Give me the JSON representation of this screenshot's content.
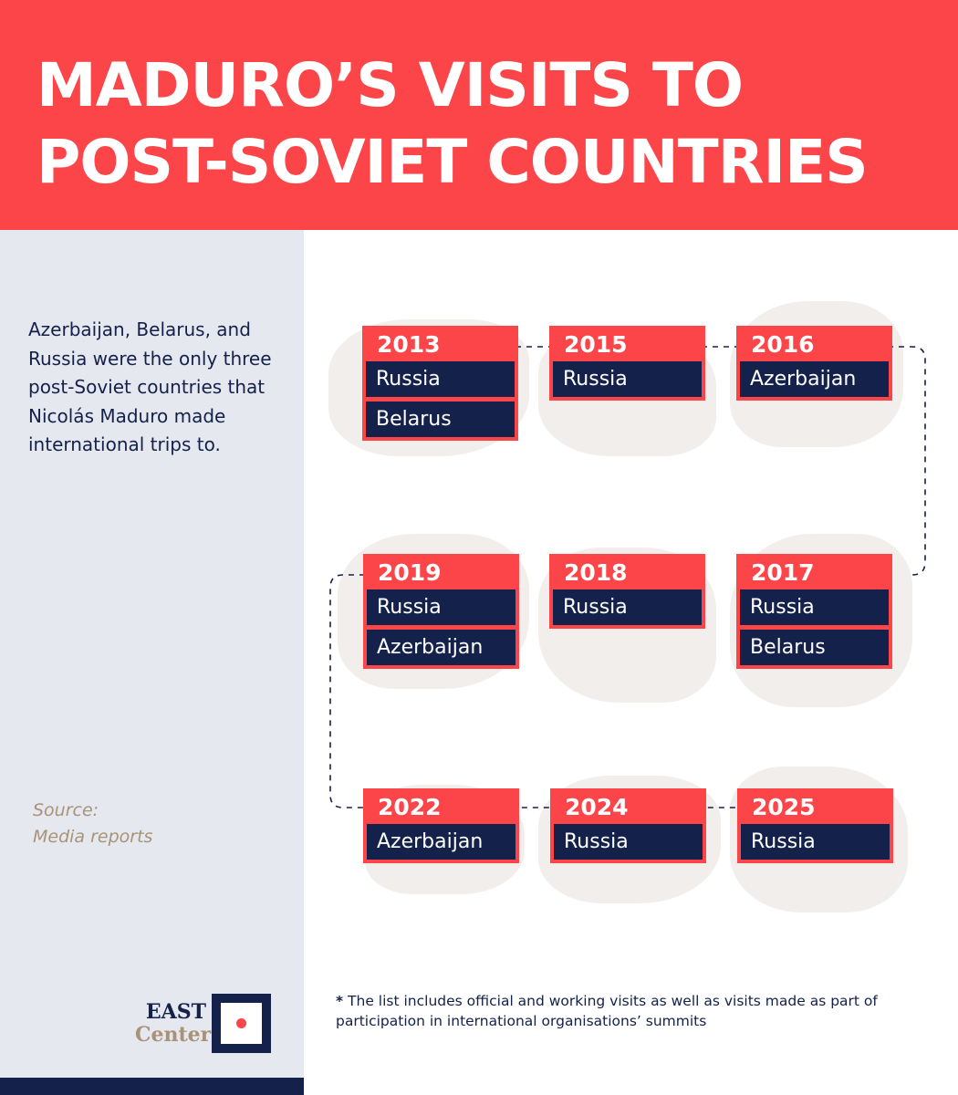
{
  "title_line1": "MADURO’S VISITS TO",
  "title_line2": "POST-SOVIET COUNTRIES",
  "intro": "Azerbaijan, Belarus, and Russia were the only three post-Soviet countries that Nicolás Maduro made international trips to.",
  "source_label": "Source:",
  "source_value": "Media reports",
  "logo": {
    "line1": "EAST",
    "line2": "Center"
  },
  "footnote": {
    "star": "*",
    "text": " The list includes official and working visits as well as visits made as part of participation in international organisations’ summits"
  },
  "colors": {
    "accent": "#fc4548",
    "navy": "#14214b",
    "sidebar": "#e6e8ef",
    "gold": "#a99378"
  },
  "visits": [
    {
      "year": "2013",
      "countries": [
        "Russia",
        "Belarus"
      ]
    },
    {
      "year": "2015",
      "countries": [
        "Russia"
      ]
    },
    {
      "year": "2016",
      "countries": [
        "Azerbaijan"
      ]
    },
    {
      "year": "2017",
      "countries": [
        "Russia",
        "Belarus"
      ]
    },
    {
      "year": "2018",
      "countries": [
        "Russia"
      ]
    },
    {
      "year": "2019",
      "countries": [
        "Russia",
        "Azerbaijan"
      ]
    },
    {
      "year": "2022",
      "countries": [
        "Azerbaijan"
      ]
    },
    {
      "year": "2024",
      "countries": [
        "Russia"
      ]
    },
    {
      "year": "2025",
      "countries": [
        "Russia"
      ]
    }
  ]
}
